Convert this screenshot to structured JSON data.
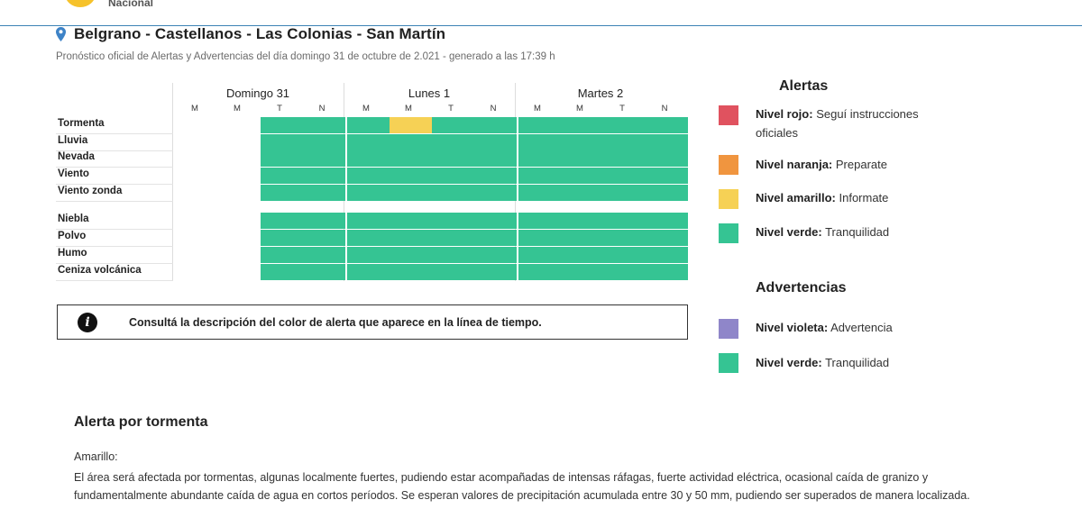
{
  "header": {
    "brand_text": "Nacional",
    "location_title": "Belgrano - Castellanos - Las Colonias - San Martín",
    "subtitle": "Pronóstico oficial de Alertas y Advertencias del día domingo 31 de octubre de 2.021 - generado a las 17:39 h"
  },
  "timeline": {
    "days": [
      "Domingo 31",
      "Lunes 1",
      "Martes 2"
    ],
    "slots": [
      "M",
      "M",
      "T",
      "N"
    ],
    "phenomena": [
      "Tormenta",
      "Lluvia",
      "Nevada",
      "Viento",
      "Viento zonda",
      "Niebla",
      "Polvo",
      "Humo",
      "Ceniza volcánica"
    ],
    "levels_note": "per row, 12 slots: none | verde | amarillo",
    "rows": [
      [
        "none",
        "none",
        "verde",
        "verde",
        "verde",
        "amarillo",
        "verde",
        "verde",
        "verde",
        "verde",
        "verde",
        "verde"
      ],
      [
        "none",
        "none",
        "verde",
        "verde",
        "verde",
        "verde",
        "verde",
        "verde",
        "verde",
        "verde",
        "verde",
        "verde"
      ],
      [
        "none",
        "none",
        "verde",
        "verde",
        "verde",
        "verde",
        "verde",
        "verde",
        "verde",
        "verde",
        "verde",
        "verde"
      ],
      [
        "none",
        "none",
        "verde",
        "verde",
        "verde",
        "verde",
        "verde",
        "verde",
        "verde",
        "verde",
        "verde",
        "verde"
      ],
      [
        "none",
        "none",
        "verde",
        "verde",
        "verde",
        "verde",
        "verde",
        "verde",
        "verde",
        "verde",
        "verde",
        "verde"
      ],
      [
        "none",
        "none",
        "verde",
        "verde",
        "verde",
        "verde",
        "verde",
        "verde",
        "verde",
        "verde",
        "verde",
        "verde"
      ],
      [
        "none",
        "none",
        "verde",
        "verde",
        "verde",
        "verde",
        "verde",
        "verde",
        "verde",
        "verde",
        "verde",
        "verde"
      ],
      [
        "none",
        "none",
        "verde",
        "verde",
        "verde",
        "verde",
        "verde",
        "verde",
        "verde",
        "verde",
        "verde",
        "verde"
      ],
      [
        "none",
        "none",
        "verde",
        "verde",
        "verde",
        "verde",
        "verde",
        "verde",
        "verde",
        "verde",
        "verde",
        "verde"
      ]
    ]
  },
  "info_box": {
    "icon": "info-icon",
    "text": "Consultá la descripción del color de alerta que aparece en la línea de tiempo."
  },
  "legend": {
    "alertas_title": "Alertas",
    "alertas": [
      {
        "name": "Nivel rojo:",
        "desc": "Seguí instrucciones oficiales",
        "color": "#e0525f"
      },
      {
        "name": "Nivel naranja:",
        "desc": "Preparate",
        "color": "#f0953f"
      },
      {
        "name": "Nivel amarillo:",
        "desc": "Informate",
        "color": "#f6d155"
      },
      {
        "name": "Nivel verde:",
        "desc": "Tranquilidad",
        "color": "#35c493"
      }
    ],
    "advertencias_title": "Advertencias",
    "advertencias": [
      {
        "name": "Nivel violeta:",
        "desc": "Advertencia",
        "color": "#8f86c9"
      },
      {
        "name": "Nivel verde:",
        "desc": "Tranquilidad",
        "color": "#35c493"
      }
    ]
  },
  "detail": {
    "title": "Alerta por tormenta",
    "level": "Amarillo:",
    "description": "El área será afectada por tormentas, algunas localmente fuertes, pudiendo estar acompañadas de intensas ráfagas, fuerte actividad eléctrica, ocasional caída de granizo y fundamentalmente abundante caída de agua en cortos períodos. Se esperan valores de precipitación acumulada entre 30 y 50 mm, pudiendo ser superados de manera localizada."
  }
}
